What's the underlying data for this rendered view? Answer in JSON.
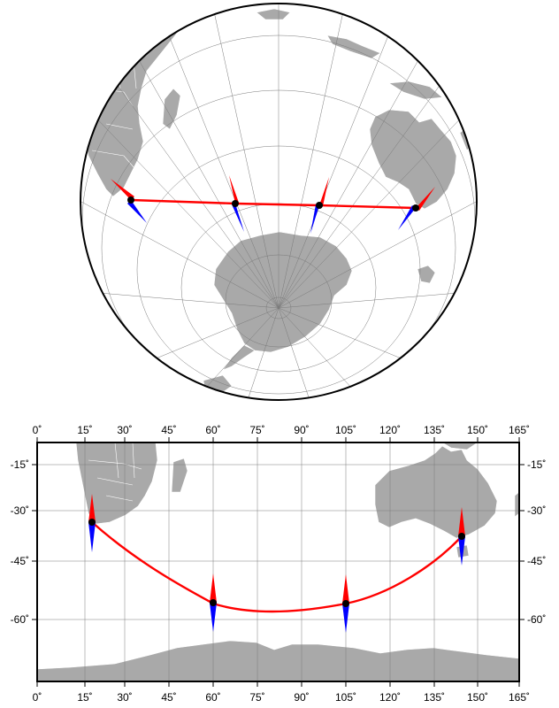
{
  "figure": {
    "maps": [
      {
        "name": "orthographic-south-polar-view",
        "projection": "orthographic",
        "land_color": "#a9a9a9",
        "border_color": "#ffffff",
        "graticule_color": "#7a7a7a",
        "route_color": "#ff0000"
      },
      {
        "name": "mercator-map",
        "projection": "mercator",
        "x_range": [
          0,
          165
        ],
        "y_range": [
          -80,
          -5
        ],
        "land_color": "#a9a9a9",
        "route_color": "#ff0000",
        "x_ticks": [
          "0˚",
          "15˚",
          "30˚",
          "45˚",
          "60˚",
          "75˚",
          "90˚",
          "105˚",
          "120˚",
          "135˚",
          "150˚",
          "165˚"
        ],
        "y_ticks": [
          "-15˚",
          "-30˚",
          "-45˚",
          "-60˚"
        ]
      }
    ],
    "compass_colors": {
      "north": "#ff0000",
      "south": "#0000ff",
      "center": "#000000"
    }
  },
  "chart_data": {
    "type": "scatter",
    "route_type": "great-circle",
    "points": [
      {
        "lon": 18,
        "lat": -34
      },
      {
        "lon": 60,
        "lat": -55
      },
      {
        "lon": 105,
        "lat": -55
      },
      {
        "lon": 145,
        "lat": -37.5
      }
    ],
    "x_axis_range": [
      0,
      165
    ],
    "y_axis_range": [
      -80,
      -5
    ],
    "grid": true
  }
}
